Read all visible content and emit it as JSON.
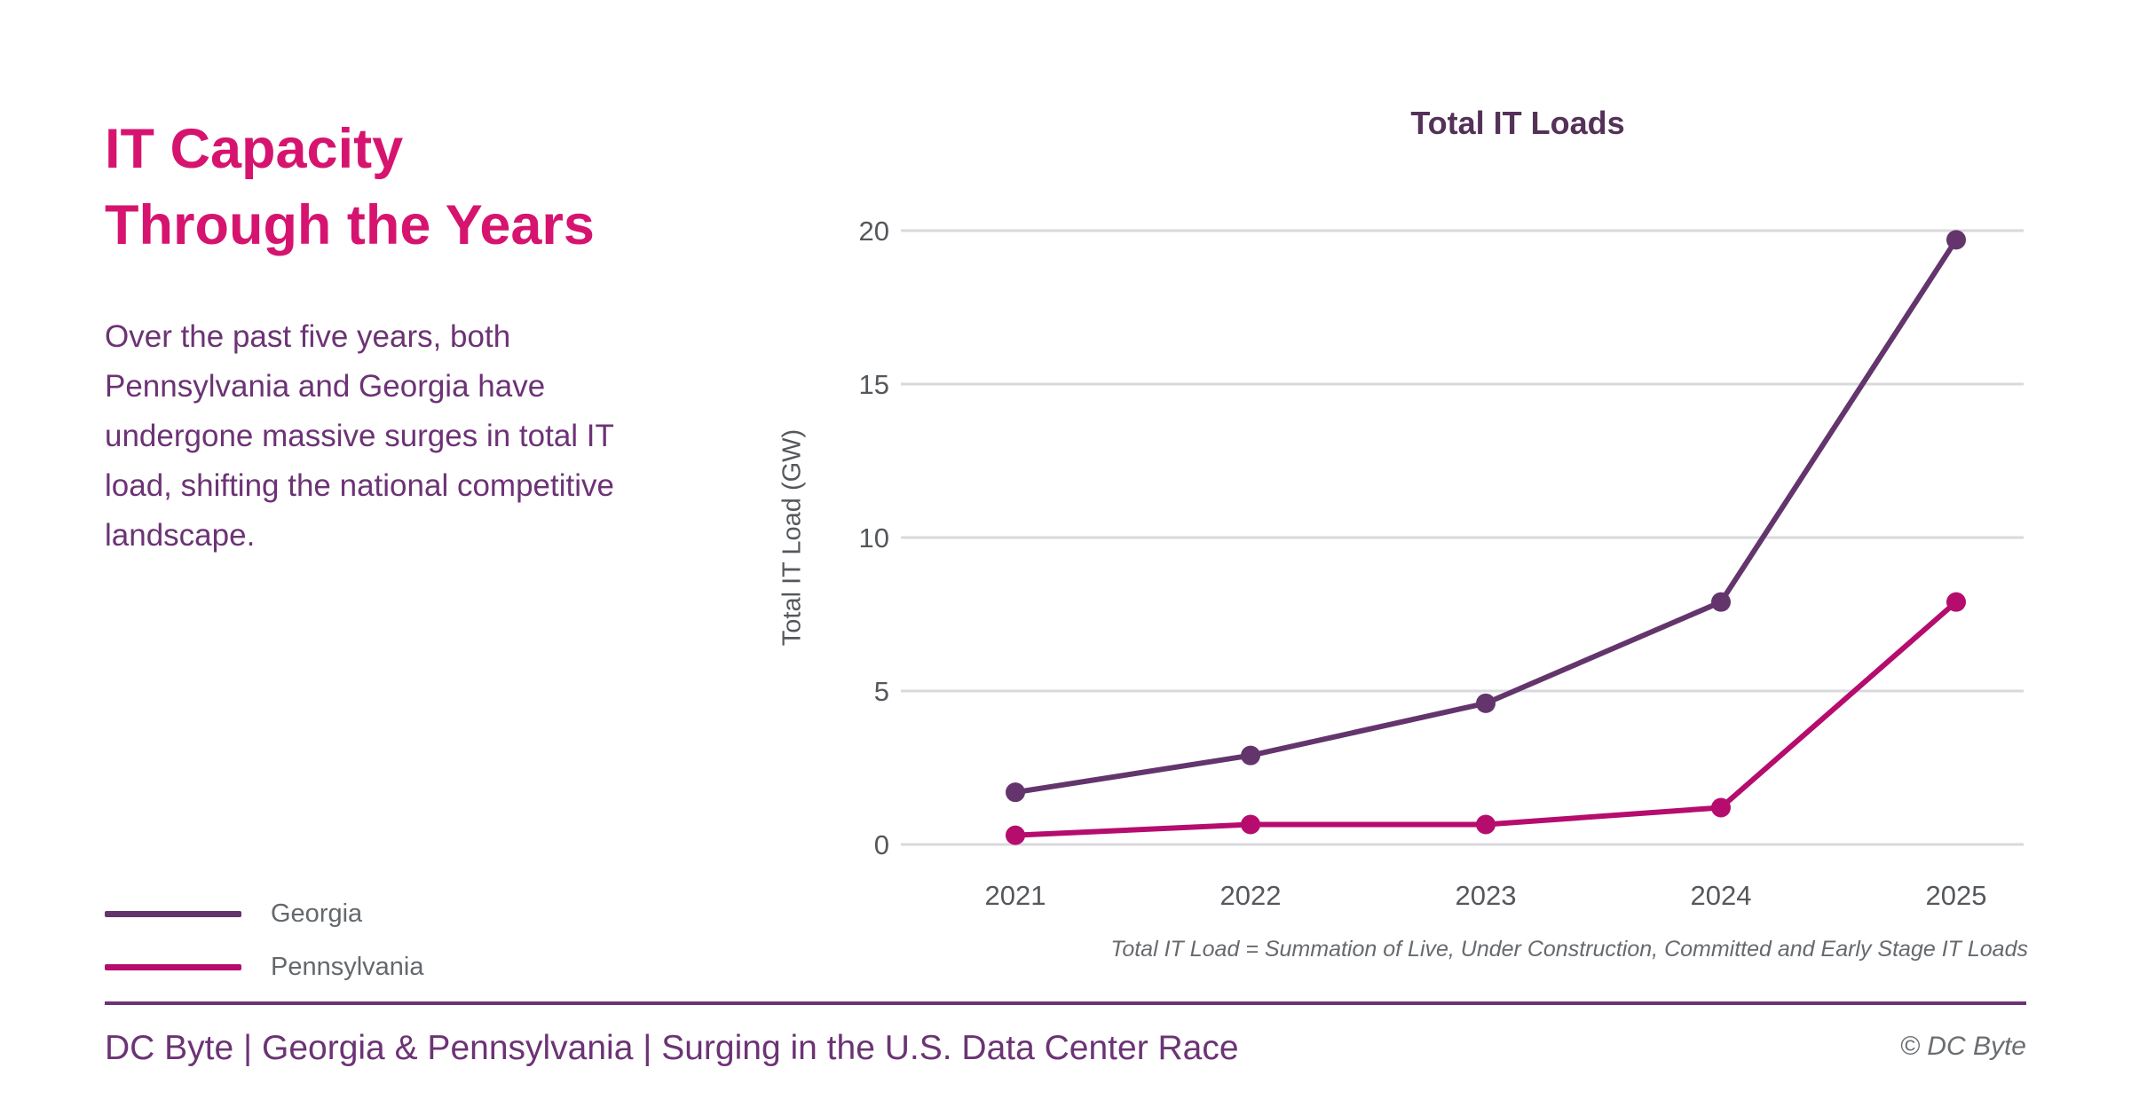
{
  "left_panel": {
    "title_line1": "IT Capacity",
    "title_line2": "Through the Years",
    "description": "Over the past five years, both Pennsylvania and Georgia have undergone massive surges in total IT load, shifting the national competitive landscape."
  },
  "legend": {
    "items": [
      {
        "label": "Georgia",
        "color": "#63356C"
      },
      {
        "label": "Pennsylvania",
        "color": "#B50C6E"
      }
    ]
  },
  "chart": {
    "title": "Total IT Loads",
    "y_axis_label": "Total IT Load (GW)",
    "footnote": "Total IT Load = Summation of Live, Under Construction, Committed and Early Stage IT Loads"
  },
  "chart_data": {
    "type": "line",
    "title": "Total IT Loads",
    "xlabel": "",
    "ylabel": "Total IT Load (GW)",
    "categories": [
      "2021",
      "2022",
      "2023",
      "2024",
      "2025"
    ],
    "series": [
      {
        "name": "Georgia",
        "color": "#63356C",
        "values": [
          1.7,
          2.9,
          4.6,
          7.9,
          19.7
        ]
      },
      {
        "name": "Pennsylvania",
        "color": "#B50C6E",
        "values": [
          0.3,
          0.65,
          0.65,
          1.2,
          7.9
        ]
      }
    ],
    "ylim": [
      0,
      20
    ],
    "yticks": [
      0,
      5,
      10,
      15,
      20
    ],
    "grid": "horizontal",
    "legend_position": "bottom-left",
    "colors": {
      "gridline": "#D9D9DC",
      "tick_text": "#54575C",
      "title_pink": "#D6146F",
      "body_purple": "#6C3375"
    }
  },
  "footer": {
    "left": "DC Byte  |  Georgia & Pennsylvania  |  Surging in the U.S. Data Center Race",
    "right": "© DC Byte"
  }
}
